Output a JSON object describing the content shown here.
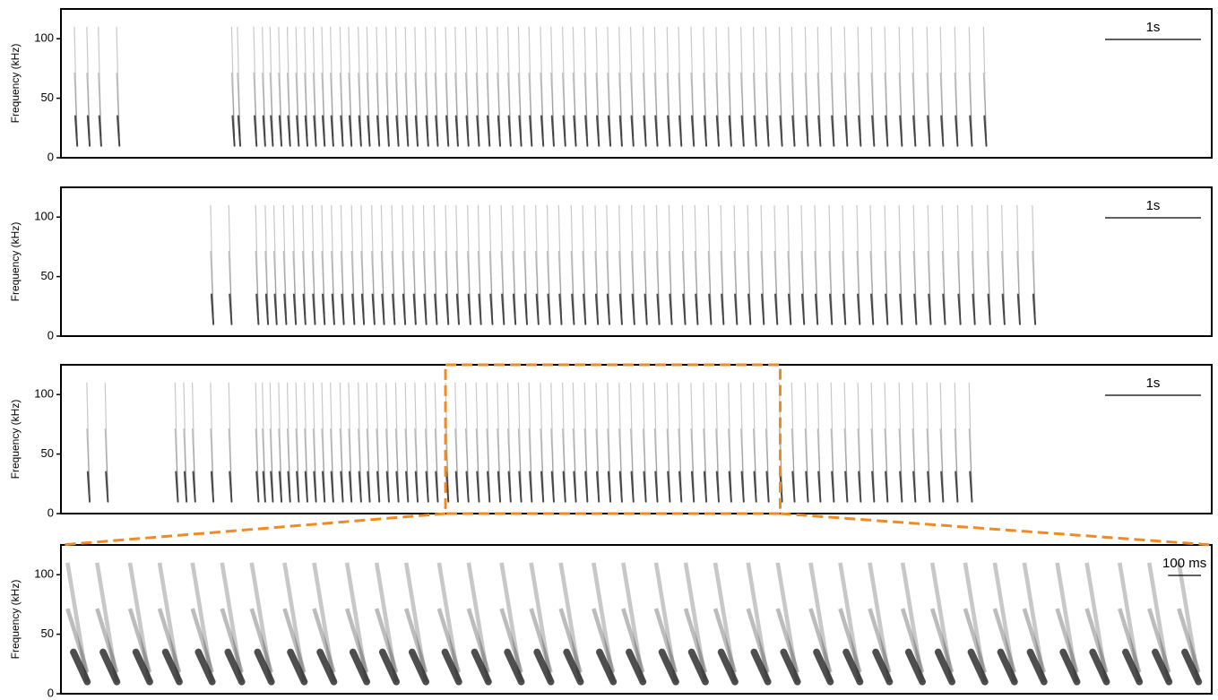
{
  "chart_data": [
    {
      "type": "spectrogram",
      "ylabel": "Frequency (kHz)",
      "ylim": [
        0,
        125
      ],
      "yticks": [
        0,
        50,
        100
      ],
      "xlim": [
        0,
        12
      ],
      "scalebar": {
        "label": "1s",
        "length": 1
      },
      "color": "#222222",
      "call_band": [
        10,
        35
      ],
      "call_top": 110,
      "call_duration": 0.03,
      "calls": [
        0.14,
        0.27,
        0.39,
        0.58,
        1.78,
        1.84,
        2.01,
        2.1,
        2.18,
        2.27,
        2.36,
        2.45,
        2.54,
        2.63,
        2.72,
        2.81,
        2.91,
        3.0,
        3.1,
        3.19,
        3.29,
        3.39,
        3.49,
        3.59,
        3.69,
        3.8,
        3.9,
        4.01,
        4.11,
        4.22,
        4.33,
        4.44,
        4.55,
        4.66,
        4.77,
        4.88,
        5.0,
        5.11,
        5.23,
        5.34,
        5.46,
        5.58,
        5.7,
        5.82,
        5.94,
        6.07,
        6.19,
        6.32,
        6.44,
        6.57,
        6.7,
        6.83,
        6.96,
        7.09,
        7.22,
        7.35,
        7.49,
        7.62,
        7.76,
        7.89,
        8.03,
        8.17,
        8.31,
        8.45,
        8.59,
        8.74,
        8.88,
        9.03,
        9.17,
        9.32,
        9.47,
        9.62
      ]
    },
    {
      "type": "spectrogram",
      "ylabel": "Frequency (kHz)",
      "ylim": [
        0,
        125
      ],
      "yticks": [
        0,
        50,
        100
      ],
      "xlim": [
        0,
        12
      ],
      "scalebar": {
        "label": "1s",
        "length": 1
      },
      "color": "#222222",
      "call_band": [
        10,
        35
      ],
      "call_top": 110,
      "call_duration": 0.03,
      "calls": [
        1.56,
        1.75,
        2.03,
        2.13,
        2.22,
        2.32,
        2.42,
        2.52,
        2.62,
        2.72,
        2.82,
        2.92,
        3.03,
        3.13,
        3.24,
        3.34,
        3.45,
        3.56,
        3.67,
        3.78,
        3.89,
        4.01,
        4.12,
        4.24,
        4.35,
        4.47,
        4.59,
        4.71,
        4.83,
        4.95,
        5.07,
        5.19,
        5.32,
        5.44,
        5.57,
        5.69,
        5.82,
        5.95,
        6.08,
        6.21,
        6.34,
        6.48,
        6.61,
        6.75,
        6.88,
        7.02,
        7.16,
        7.3,
        7.44,
        7.58,
        7.72,
        7.86,
        8.01,
        8.15,
        8.3,
        8.44,
        8.59,
        8.74,
        8.89,
        9.04,
        9.19,
        9.35,
        9.5,
        9.66,
        9.81,
        9.97,
        10.13
      ]
    },
    {
      "type": "spectrogram",
      "ylabel": "Frequency (kHz)",
      "ylim": [
        0,
        125
      ],
      "yticks": [
        0,
        50,
        100
      ],
      "xlim": [
        0,
        12
      ],
      "scalebar": {
        "label": "1s",
        "length": 1
      },
      "color": "#222222",
      "call_band": [
        10,
        35
      ],
      "call_top": 110,
      "call_duration": 0.03,
      "zoom": [
        4.01,
        7.5
      ],
      "zoom_color": "#f08a24",
      "calls": [
        0.27,
        0.46,
        1.19,
        1.28,
        1.37,
        1.56,
        1.75,
        2.03,
        2.1,
        2.18,
        2.27,
        2.36,
        2.45,
        2.54,
        2.63,
        2.72,
        2.81,
        2.91,
        3.0,
        3.1,
        3.19,
        3.29,
        3.39,
        3.49,
        3.59,
        3.69,
        3.8,
        3.9,
        4.01,
        4.11,
        4.22,
        4.33,
        4.44,
        4.55,
        4.66,
        4.77,
        4.88,
        5.0,
        5.11,
        5.23,
        5.34,
        5.46,
        5.58,
        5.7,
        5.82,
        5.94,
        6.07,
        6.19,
        6.32,
        6.44,
        6.57,
        6.7,
        6.83,
        6.96,
        7.09,
        7.22,
        7.35,
        7.49,
        7.62,
        7.76,
        7.89,
        8.03,
        8.17,
        8.31,
        8.45,
        8.59,
        8.74,
        8.88,
        9.03,
        9.17,
        9.32,
        9.47
      ]
    },
    {
      "type": "spectrogram",
      "ylabel": "Frequency (kHz)",
      "ylim": [
        0,
        125
      ],
      "yticks": [
        0,
        50,
        100
      ],
      "xlim": [
        0,
        3.5
      ],
      "scalebar": {
        "label": "100 ms",
        "length": 0.1
      },
      "color": "#222222",
      "call_band": [
        10,
        35
      ],
      "call_top": 110,
      "call_duration": 0.06,
      "calls": [
        0.02,
        0.11,
        0.21,
        0.3,
        0.4,
        0.49,
        0.58,
        0.68,
        0.77,
        0.87,
        0.96,
        1.05,
        1.15,
        1.24,
        1.34,
        1.43,
        1.52,
        1.62,
        1.71,
        1.81,
        1.9,
        1.99,
        2.09,
        2.18,
        2.28,
        2.37,
        2.46,
        2.56,
        2.65,
        2.75,
        2.84,
        2.93,
        3.03,
        3.12,
        3.22,
        3.31,
        3.4
      ]
    }
  ]
}
